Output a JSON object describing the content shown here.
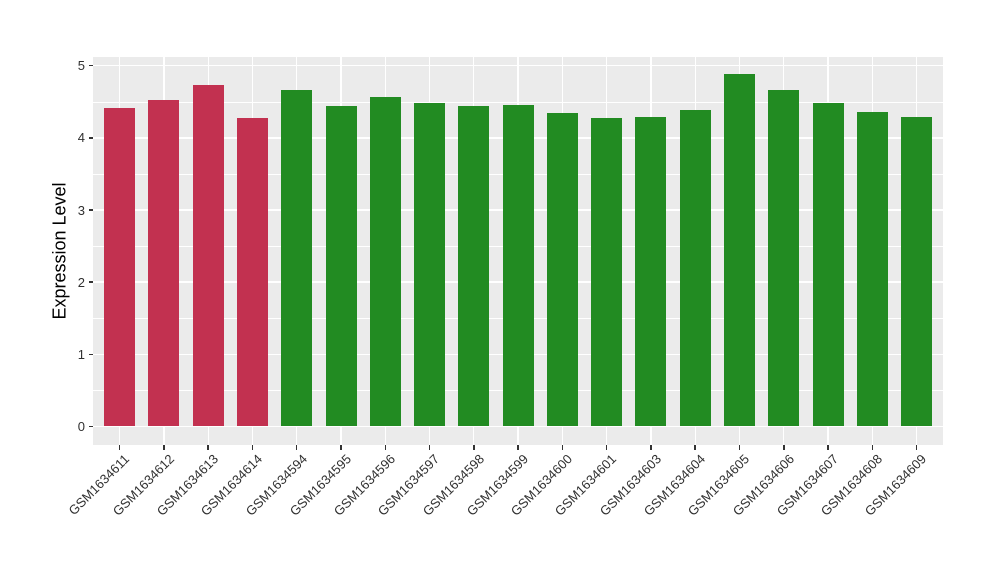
{
  "figure": {
    "background": "#FFFFFF",
    "panel_background": "#EBEBEB",
    "grid_color": "#FFFFFF",
    "tick_color": "#333333",
    "axis_text_color": "#303030",
    "axis_title_color": "#000000"
  },
  "chart_data": {
    "type": "bar",
    "title": "",
    "xlabel": "",
    "ylabel": "Expression Level",
    "ylim": [
      0,
      5.15
    ],
    "yticks": [
      0,
      1,
      2,
      3,
      4,
      5
    ],
    "grid": "major and minor horizontal white lines, vertical major lines at category centers",
    "legend_position": "none",
    "categories": [
      "GSM1634611",
      "GSM1634612",
      "GSM1634613",
      "GSM1634614",
      "GSM1634594",
      "GSM1634595",
      "GSM1634596",
      "GSM1634597",
      "GSM1634598",
      "GSM1634599",
      "GSM1634600",
      "GSM1634601",
      "GSM1634603",
      "GSM1634604",
      "GSM1634605",
      "GSM1634606",
      "GSM1634607",
      "GSM1634608",
      "GSM1634609"
    ],
    "values": [
      4.41,
      4.52,
      4.73,
      4.28,
      4.66,
      4.44,
      4.56,
      4.49,
      4.44,
      4.46,
      4.35,
      4.27,
      4.29,
      4.39,
      4.89,
      4.66,
      4.49,
      4.36,
      4.29
    ],
    "groups": [
      "red",
      "red",
      "red",
      "red",
      "green",
      "green",
      "green",
      "green",
      "green",
      "green",
      "green",
      "green",
      "green",
      "green",
      "green",
      "green",
      "green",
      "green",
      "green"
    ],
    "group_colors": {
      "red": "#C23150",
      "green": "#228B22"
    }
  }
}
